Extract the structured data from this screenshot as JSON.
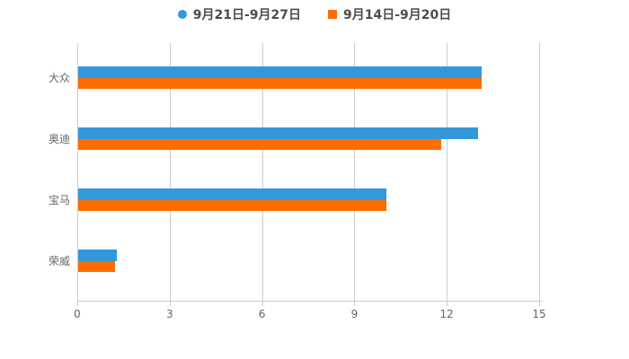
{
  "chart_data": {
    "type": "bar",
    "orientation": "horizontal",
    "title": "",
    "xlabel": "",
    "ylabel": "",
    "categories": [
      "大众",
      "奥迪",
      "宝马",
      "荣威"
    ],
    "series": [
      {
        "name": "9月21日-9月27日",
        "color": "#3398DB",
        "marker": "circle",
        "values": [
          13.1,
          13.0,
          10.0,
          1.25
        ]
      },
      {
        "name": "9月14日-9月20日",
        "color": "#FF6C00",
        "marker": "square",
        "values": [
          13.1,
          11.8,
          10.0,
          1.2
        ]
      }
    ],
    "x_ticks": [
      "0",
      "3",
      "6",
      "9",
      "12",
      "15"
    ],
    "xlim": [
      0,
      15
    ],
    "grid": true,
    "legend_position": "top",
    "background": "#ffffff",
    "gridline_color": "#cccccc",
    "label_color": "#666666",
    "legend_text_color": "#4c4c4c"
  }
}
